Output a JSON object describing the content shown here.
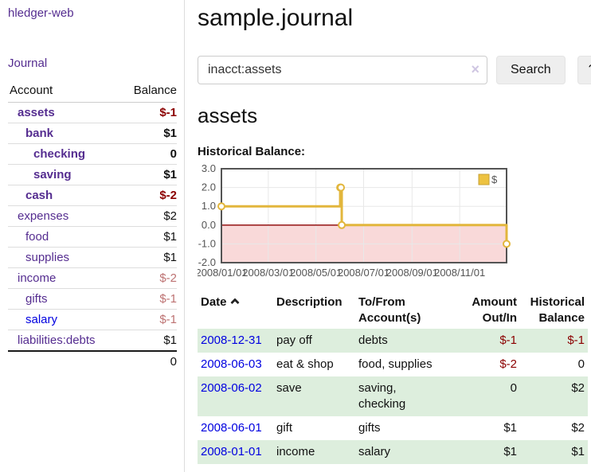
{
  "colors": {
    "link_visited": "#552d90",
    "link_unvisited": "#0000e0",
    "negative_strong": "#8b0000",
    "negative_soft": "#bd7272",
    "stripe_green": "#ddeedd",
    "chart_line": "#e2b63c",
    "chart_point_fill": "#ffffff",
    "chart_negative_fill": "#f9d9d9",
    "chart_zero_line": "#8b0000",
    "chart_border": "#545454",
    "chart_grid": "#e8e8e8",
    "chart_tick_text": "#545454",
    "legend_swatch": "#edc240",
    "legend_swatch_border": "#c6a035"
  },
  "app": {
    "brand": "hledger-web",
    "nav_journal": "Journal"
  },
  "sidebar": {
    "headers": [
      "Account",
      "Balance"
    ],
    "accounts": [
      {
        "name": "assets",
        "balance": "$-1",
        "depth": 1,
        "bold": true,
        "visited": true
      },
      {
        "name": "bank",
        "balance": "$1",
        "depth": 2,
        "bold": true,
        "visited": true
      },
      {
        "name": "checking",
        "balance": "0",
        "depth": 3,
        "bold": true,
        "visited": true
      },
      {
        "name": "saving",
        "balance": "$1",
        "depth": 3,
        "bold": true,
        "visited": true
      },
      {
        "name": "cash",
        "balance": "$-2",
        "depth": 2,
        "bold": true,
        "visited": true
      },
      {
        "name": "expenses",
        "balance": "$2",
        "depth": 1,
        "bold": false,
        "visited": true
      },
      {
        "name": "food",
        "balance": "$1",
        "depth": 2,
        "bold": false,
        "visited": true
      },
      {
        "name": "supplies",
        "balance": "$1",
        "depth": 2,
        "bold": false,
        "visited": true
      },
      {
        "name": "income",
        "balance": "$-2",
        "depth": 1,
        "bold": false,
        "visited": true
      },
      {
        "name": "gifts",
        "balance": "$-1",
        "depth": 2,
        "bold": false,
        "visited": true
      },
      {
        "name": "salary",
        "balance": "$-1",
        "depth": 2,
        "bold": false,
        "visited": false
      },
      {
        "name": "liabilities:debts",
        "balance": "$1",
        "depth": 1,
        "bold": false,
        "visited": true
      }
    ],
    "total": "0"
  },
  "main": {
    "title": "sample.journal",
    "search": {
      "value": "inacct:assets",
      "clear_icon": "×",
      "button_label": "Search",
      "help_label": "?"
    },
    "account_heading": "assets",
    "chart_heading": "Historical Balance:",
    "register": {
      "headers": [
        "Date",
        "Description",
        "To/From Account(s)",
        "Amount Out/In",
        "Historical Balance"
      ],
      "sort_icon": "chevron-up",
      "rows": [
        {
          "date": "2008-12-31",
          "description": "pay off",
          "to_from": "debts",
          "amount": "$-1",
          "historical": "$-1"
        },
        {
          "date": "2008-06-03",
          "description": "eat & shop",
          "to_from": "food, supplies",
          "amount": "$-2",
          "historical": "0"
        },
        {
          "date": "2008-06-02",
          "description": "save",
          "to_from": "saving,\nchecking",
          "amount": "0",
          "historical": "$2"
        },
        {
          "date": "2008-06-01",
          "description": "gift",
          "to_from": "gifts",
          "amount": "$1",
          "historical": "$2"
        },
        {
          "date": "2008-01-01",
          "description": "income",
          "to_from": "salary",
          "amount": "$1",
          "historical": "$1"
        }
      ]
    }
  },
  "chart_data": {
    "type": "line",
    "style": "step",
    "title": "Historical Balance:",
    "series": [
      {
        "name": "$",
        "points": [
          [
            "2008-01-01",
            1
          ],
          [
            "2008-06-01",
            2
          ],
          [
            "2008-06-02",
            2
          ],
          [
            "2008-06-03",
            0
          ],
          [
            "2008-12-31",
            -1
          ]
        ]
      }
    ],
    "x_start": "2008-01-01",
    "x_end": "2008-12-31",
    "xticks": [
      "2008/01/01",
      "2008/03/01",
      "2008/05/01",
      "2008/07/01",
      "2008/09/01",
      "2008/11/01"
    ],
    "yticks": [
      3.0,
      2.0,
      1.0,
      0.0,
      -1.0,
      -2.0
    ],
    "ylim": [
      -2,
      3
    ],
    "grid": true,
    "legend": {
      "label": "$",
      "position": "top-right"
    }
  }
}
